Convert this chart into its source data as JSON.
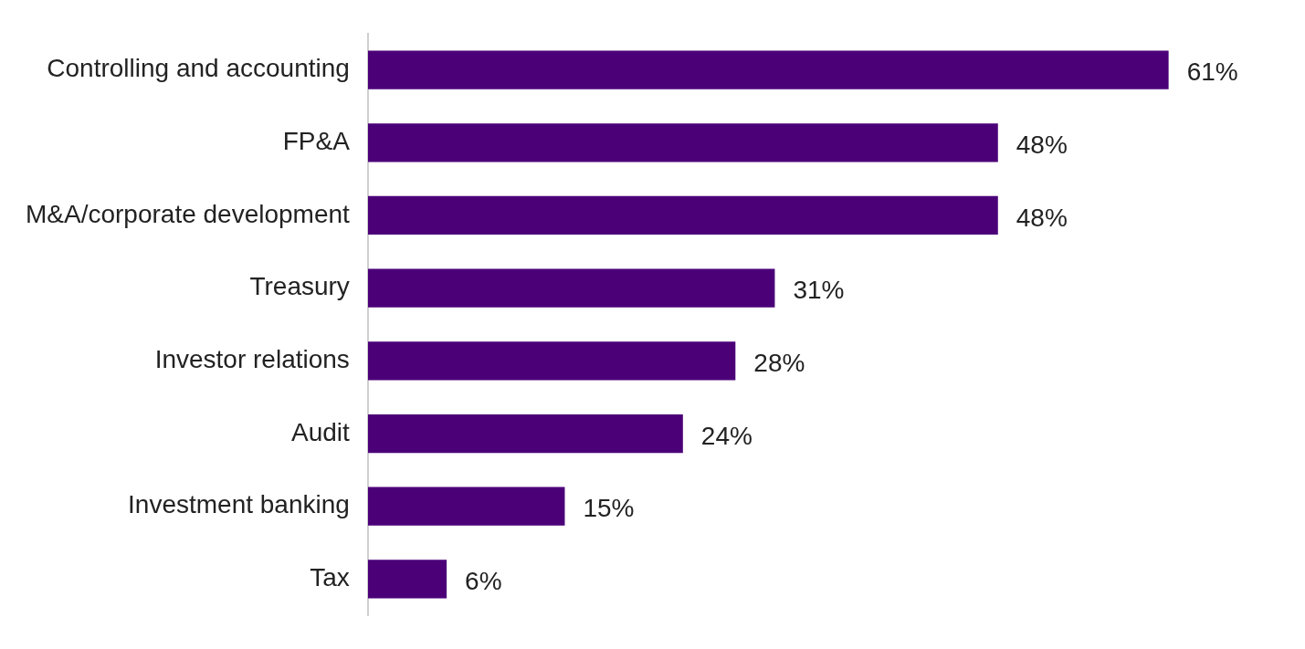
{
  "chart_data": {
    "type": "bar",
    "orientation": "horizontal",
    "categories": [
      "Controlling and accounting",
      "FP&A",
      "M&A/corporate development",
      "Treasury",
      "Investor relations",
      "Audit",
      "Investment banking",
      "Tax"
    ],
    "values": [
      61,
      48,
      48,
      31,
      28,
      24,
      15,
      6
    ],
    "value_labels": [
      "61%",
      "48%",
      "48%",
      "31%",
      "28%",
      "24%",
      "15%",
      "6%"
    ],
    "color": "#4b0078",
    "tick_labels": "y"
  }
}
